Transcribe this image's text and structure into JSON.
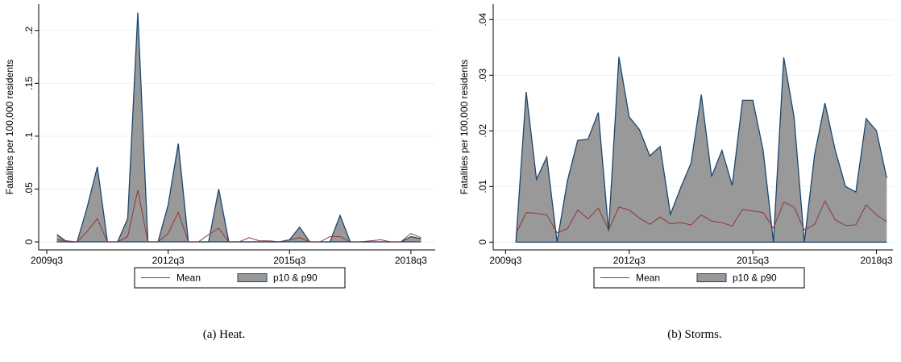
{
  "chart_data": [
    {
      "type": "band_line",
      "caption": "(a) Heat.",
      "ylabel": "Fatalities per 100,000 residents",
      "x": [
        2009.75,
        2010,
        2010.25,
        2010.5,
        2010.75,
        2011,
        2011.25,
        2011.5,
        2011.75,
        2012,
        2012.25,
        2012.5,
        2012.75,
        2013,
        2013.25,
        2013.5,
        2013.75,
        2014,
        2014.25,
        2014.5,
        2014.75,
        2015,
        2015.25,
        2015.5,
        2015.75,
        2016,
        2016.25,
        2016.5,
        2016.75,
        2017,
        2017.25,
        2017.5,
        2017.75,
        2018,
        2018.25,
        2018.5,
        2018.75
      ],
      "series": [
        {
          "name": "Mean",
          "color": "#90353b",
          "values": [
            0.002,
            0.001,
            0,
            0.01,
            0.022,
            0,
            0,
            0.005,
            0.049,
            0,
            0,
            0.008,
            0.028,
            0,
            0,
            0.007,
            0.013,
            0,
            0,
            0.004,
            0.001,
            0.001,
            0,
            0.002,
            0.004,
            0,
            0,
            0.005,
            0.005,
            0,
            0,
            0.001,
            0.002,
            0,
            0,
            0.008,
            0.004
          ]
        },
        {
          "name": "p10 & p90",
          "color": "#999999",
          "line_color": "#1a476f",
          "low": [
            0,
            0,
            0,
            0,
            0,
            0,
            0,
            0,
            0,
            0,
            0,
            0,
            0,
            0,
            0,
            0,
            0,
            0,
            0,
            0,
            0,
            0,
            0,
            0,
            0,
            0,
            0,
            0,
            0,
            0,
            0,
            0,
            0,
            0,
            0,
            0,
            0
          ],
          "high": [
            0.007,
            0,
            0,
            0.033,
            0.071,
            0,
            0,
            0.022,
            0.217,
            0,
            0,
            0.035,
            0.093,
            0,
            0,
            0,
            0.05,
            0,
            0,
            0,
            0,
            0,
            0,
            0.002,
            0.014,
            0,
            0,
            0,
            0.025,
            0,
            0,
            0,
            0,
            0,
            0,
            0.005,
            0.003
          ]
        }
      ],
      "xlim": [
        2009.3,
        2019.1
      ],
      "xticks": [
        {
          "value": 2009.5,
          "label": "2009q3"
        },
        {
          "value": 2012.5,
          "label": "2012q3"
        },
        {
          "value": 2015.5,
          "label": "2015q3"
        },
        {
          "value": 2018.5,
          "label": "2018q3"
        }
      ],
      "ylim": [
        -0.0076,
        0.225
      ],
      "yticks": [
        0,
        {
          "value": 0.05,
          "label": ".05"
        },
        {
          "value": 0.1,
          "label": ".1"
        },
        {
          "value": 0.15,
          "label": ".15"
        },
        {
          "value": 0.2,
          "label": ".2"
        }
      ],
      "grid": true,
      "legend": "bottom"
    },
    {
      "type": "band_line",
      "caption": "(b) Storms.",
      "ylabel": "Fatalities per 100,000 residents",
      "x": [
        2009.75,
        2010,
        2010.25,
        2010.5,
        2010.75,
        2011,
        2011.25,
        2011.5,
        2011.75,
        2012,
        2012.25,
        2012.5,
        2012.75,
        2013,
        2013.25,
        2013.5,
        2013.75,
        2014,
        2014.25,
        2014.5,
        2014.75,
        2015,
        2015.25,
        2015.5,
        2015.75,
        2016,
        2016.25,
        2016.5,
        2016.75,
        2017,
        2017.25,
        2017.5,
        2017.75,
        2018,
        2018.25,
        2018.5,
        2018.75
      ],
      "series": [
        {
          "name": "Mean",
          "color": "#90353b",
          "values": [
            0.0015,
            0.0053,
            0.0052,
            0.0049,
            0.0017,
            0.0024,
            0.0058,
            0.0042,
            0.0061,
            0.0022,
            0.0063,
            0.0058,
            0.0043,
            0.0032,
            0.0045,
            0.0033,
            0.0035,
            0.0031,
            0.0049,
            0.0038,
            0.0035,
            0.0029,
            0.0059,
            0.0056,
            0.0053,
            0.0025,
            0.0072,
            0.0063,
            0.0022,
            0.0032,
            0.0074,
            0.004,
            0.003,
            0.0031,
            0.0067,
            0.0049,
            0.0037
          ]
        },
        {
          "name": "p10 & p90",
          "color": "#999999",
          "line_color": "#1a476f",
          "low": [
            0,
            0,
            0,
            0,
            0,
            0,
            0,
            0,
            0,
            0,
            0,
            0,
            0,
            0,
            0,
            0,
            0,
            0,
            0,
            0,
            0,
            0,
            0,
            0,
            0,
            0,
            0,
            0,
            0,
            0,
            0,
            0,
            0,
            0,
            0,
            0,
            0
          ],
          "high": [
            0,
            0.027,
            0.0113,
            0.0153,
            0,
            0.011,
            0.0183,
            0.0185,
            0.0233,
            0.002,
            0.0333,
            0.0225,
            0.0202,
            0.0155,
            0.0172,
            0.005,
            0.0098,
            0.0142,
            0.0265,
            0.0118,
            0.0165,
            0.0102,
            0.0255,
            0.0255,
            0.0165,
            0,
            0.0332,
            0.0225,
            0,
            0.0158,
            0.025,
            0.0165,
            0.01,
            0.009,
            0.0222,
            0.02,
            0.0115
          ]
        }
      ],
      "xlim": [
        2009.2,
        2018.9
      ],
      "xticks": [
        {
          "value": 2009.5,
          "label": "2009q3"
        },
        {
          "value": 2012.5,
          "label": "2012q3"
        },
        {
          "value": 2015.5,
          "label": "2015q3"
        },
        {
          "value": 2018.5,
          "label": "2018q3"
        }
      ],
      "ylim": [
        -0.0014,
        0.0428
      ],
      "yticks": [
        0,
        {
          "value": 0.01,
          "label": ".01"
        },
        {
          "value": 0.02,
          "label": ".02"
        },
        {
          "value": 0.03,
          "label": ".03"
        },
        {
          "value": 0.04,
          "label": ".04"
        }
      ],
      "grid": true,
      "legend": "bottom"
    }
  ]
}
